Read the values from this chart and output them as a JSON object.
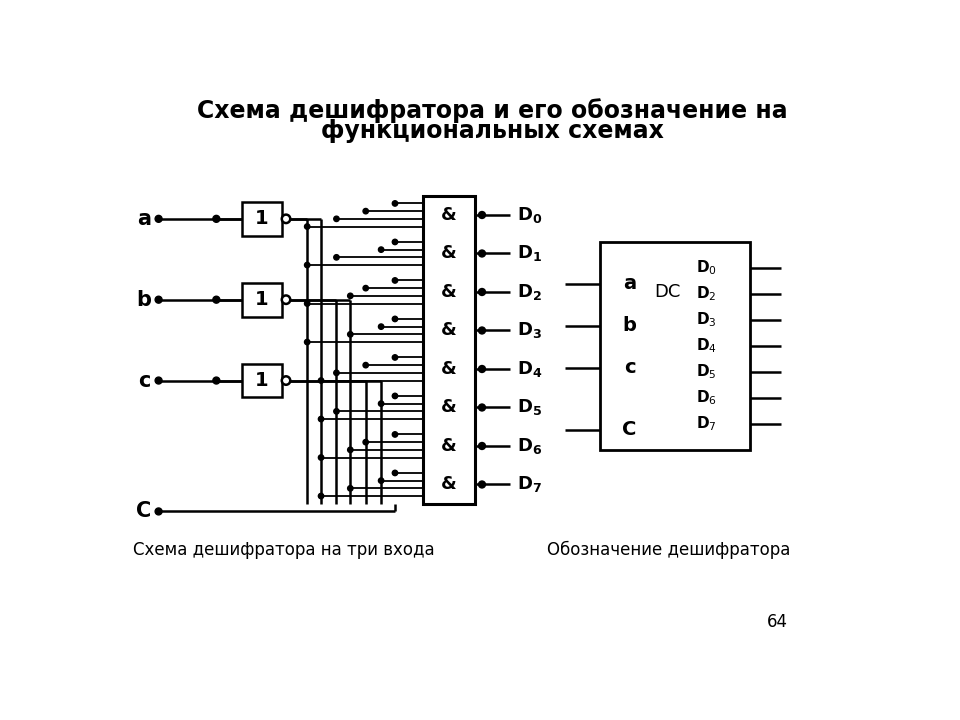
{
  "title_line1": "Схема дешифратора и его обозначение на",
  "title_line2": "функциональных схемах",
  "title_fontsize": 17,
  "subtitle_label": "Схема дешифратора на три входа",
  "subtitle2_label": "Обозначение дешифратора",
  "page_number": "64",
  "bg_color": "#ffffff",
  "line_color": "#000000"
}
